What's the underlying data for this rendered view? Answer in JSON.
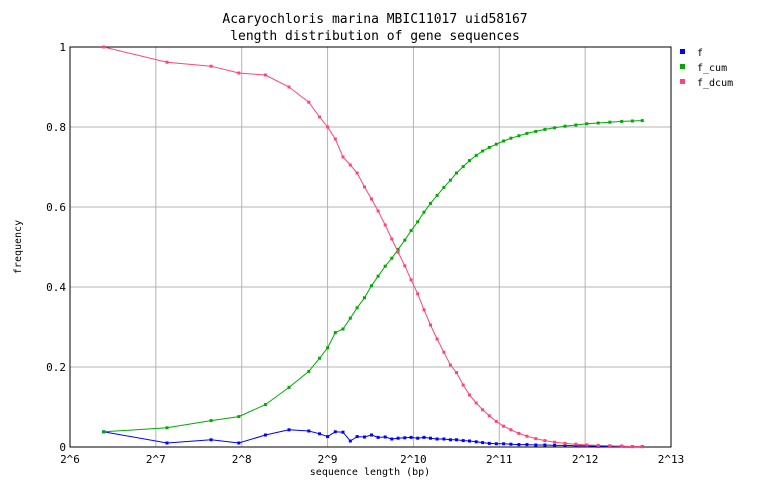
{
  "chart_data": {
    "type": "line",
    "title": "Acaryochloris marina MBIC11017 uid58167",
    "subtitle": "length distribution of gene sequences",
    "xlabel": "sequence length (bp)",
    "ylabel": "frequency",
    "x_scale": "log2",
    "xlim": [
      64,
      8192
    ],
    "ylim": [
      0,
      1
    ],
    "x_tick_labels": [
      "2^6",
      "2^7",
      "2^8",
      "2^9",
      "2^10",
      "2^11",
      "2^12",
      "2^13"
    ],
    "y_tick_labels": [
      "0",
      "0.2",
      "0.4",
      "0.6",
      "0.8",
      "1"
    ],
    "grid": true,
    "legend_position": "top-right",
    "series": [
      {
        "name": "f",
        "color": "#0000ff",
        "x": [
          84,
          140,
          200,
          250,
          310,
          375,
          440,
          480,
          512,
          545,
          580,
          615,
          650,
          690,
          730,
          770,
          815,
          860,
          905,
          955,
          1005,
          1060,
          1115,
          1175,
          1240,
          1310,
          1380,
          1450,
          1530,
          1610,
          1700,
          1790,
          1890,
          2000,
          2120,
          2250,
          2400,
          2560,
          2750,
          2960,
          3200,
          3480,
          3800,
          4150,
          4550,
          5000,
          5500,
          6000,
          6500
        ],
        "y": [
          0.038,
          0.01,
          0.018,
          0.01,
          0.03,
          0.043,
          0.04,
          0.033,
          0.026,
          0.038,
          0.037,
          0.015,
          0.026,
          0.025,
          0.03,
          0.024,
          0.025,
          0.02,
          0.022,
          0.023,
          0.024,
          0.022,
          0.024,
          0.022,
          0.02,
          0.02,
          0.018,
          0.018,
          0.016,
          0.015,
          0.013,
          0.011,
          0.009,
          0.008,
          0.008,
          0.007,
          0.006,
          0.006,
          0.005,
          0.005,
          0.004,
          0.004,
          0.003,
          0.003,
          0.002,
          0.002,
          0.002,
          0.001,
          0.001
        ]
      },
      {
        "name": "f_cum",
        "color": "#00aa00",
        "x": [
          84,
          140,
          200,
          250,
          310,
          375,
          440,
          480,
          512,
          545,
          580,
          615,
          650,
          690,
          730,
          770,
          815,
          860,
          905,
          955,
          1005,
          1060,
          1115,
          1175,
          1240,
          1310,
          1380,
          1450,
          1530,
          1610,
          1700,
          1790,
          1890,
          2000,
          2120,
          2250,
          2400,
          2560,
          2750,
          2960,
          3200,
          3480,
          3800,
          4150,
          4550,
          5000,
          5500,
          6000,
          6500
        ],
        "y": [
          0.038,
          0.048,
          0.066,
          0.076,
          0.106,
          0.149,
          0.189,
          0.222,
          0.248,
          0.286,
          0.295,
          0.322,
          0.348,
          0.373,
          0.403,
          0.427,
          0.452,
          0.472,
          0.494,
          0.517,
          0.541,
          0.563,
          0.587,
          0.609,
          0.629,
          0.649,
          0.667,
          0.685,
          0.701,
          0.716,
          0.729,
          0.74,
          0.749,
          0.757,
          0.765,
          0.772,
          0.778,
          0.784,
          0.789,
          0.794,
          0.798,
          0.802,
          0.805,
          0.808,
          0.81,
          0.812,
          0.814,
          0.815,
          0.816
        ]
      },
      {
        "name": "f_dcum",
        "color": "#ff4477",
        "x": [
          84,
          140,
          200,
          250,
          310,
          375,
          440,
          480,
          512,
          545,
          580,
          615,
          650,
          690,
          730,
          770,
          815,
          860,
          905,
          955,
          1005,
          1060,
          1115,
          1175,
          1240,
          1310,
          1380,
          1450,
          1530,
          1610,
          1700,
          1790,
          1890,
          2000,
          2120,
          2250,
          2400,
          2560,
          2750,
          2960,
          3200,
          3480,
          3800,
          4150,
          4550,
          5000,
          5500,
          6000,
          6500
        ],
        "y": [
          1.0,
          0.962,
          0.952,
          0.935,
          0.93,
          0.9,
          0.862,
          0.825,
          0.8,
          0.77,
          0.725,
          0.705,
          0.685,
          0.65,
          0.62,
          0.59,
          0.555,
          0.52,
          0.487,
          0.453,
          0.418,
          0.383,
          0.343,
          0.305,
          0.27,
          0.237,
          0.205,
          0.186,
          0.155,
          0.13,
          0.11,
          0.093,
          0.078,
          0.064,
          0.052,
          0.043,
          0.034,
          0.027,
          0.021,
          0.016,
          0.012,
          0.009,
          0.007,
          0.005,
          0.004,
          0.003,
          0.002,
          0.001,
          0.001
        ]
      }
    ]
  }
}
